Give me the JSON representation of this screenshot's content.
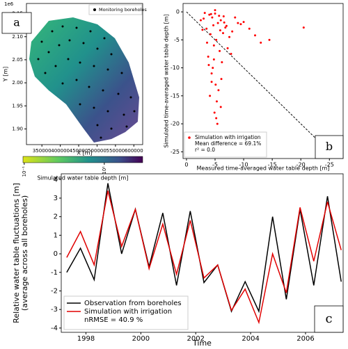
{
  "chart_data": [
    {
      "type": "map",
      "xlabel": "X [m]",
      "ylabel": "Y [m]",
      "offset_label": "1e6",
      "legend": "Monitoring boreholes",
      "panel_label": "a",
      "xlim": [
        308000,
        624000
      ],
      "ylim": [
        1.866,
        2.172
      ],
      "xticks": [
        350000,
        400000,
        450000,
        500000,
        550000,
        600000
      ],
      "yticks": [
        {
          "value": 1.9,
          "label": "1.90"
        },
        {
          "value": 1.95,
          "label": "1.95"
        },
        {
          "value": 2,
          "label": "2.00"
        },
        {
          "value": 2.05,
          "label": "2.05"
        },
        {
          "value": 2.1,
          "label": "2.10"
        },
        {
          "value": 2.15,
          "label": "2.15"
        }
      ],
      "colorbar": {
        "label": "Simulated water table depth [m]",
        "log": true,
        "lim": [
          0.093,
          91
        ],
        "ticks": [
          {
            "value": 0.1,
            "label": "10⁻¹"
          },
          {
            "value": 10,
            "label": "10¹"
          }
        ]
      }
    },
    {
      "type": "scatter",
      "xlabel": "Measured time-averaged water table depth [m]",
      "ylabel": "Simulated time-averaged water table depth [m]",
      "panel_label": "b",
      "xlim": [
        0.6,
        -27.4
      ],
      "ylim": [
        -26.2,
        1.5
      ],
      "xticks": [
        0,
        -5,
        -10,
        -15,
        -20,
        -25
      ],
      "yticks": [
        0,
        -5,
        -10,
        -15,
        -20,
        -25
      ],
      "legend_corner": "lower left",
      "legend_notes": [
        "Mean difference = 69.1%",
        "r² = 0.0"
      ],
      "series": [
        {
          "name": "Simulation with irrigation",
          "color": "#ff0000",
          "x": [
            -4,
            -4.5,
            -5,
            -5.5,
            -6,
            -3.5,
            -6.5,
            -7,
            -4.2,
            -5.2,
            -3,
            -8,
            -9,
            -4.8,
            -5.8,
            -6.2,
            -7.5,
            -3.8,
            -4.4,
            -5.1,
            -6.8,
            -10,
            -11,
            -12,
            -13,
            -14.5,
            -20.5,
            -3.2,
            -2.5,
            -4.1,
            -5.3,
            -6.1,
            -7.2,
            -8.5,
            -9.5,
            -4.6,
            -5.6,
            -3.6,
            -4.9,
            -5.4,
            -6.4,
            -7.8,
            -2.8,
            -4.3,
            -5,
            -5.7,
            -6.6,
            -4.7,
            -5.9,
            -3.9,
            -5.5,
            -4.4,
            -6,
            -5.2,
            -4.8
          ],
          "y": [
            -0.5,
            -1,
            -0.3,
            -2,
            -1.5,
            -3,
            -0.8,
            -2.5,
            -4,
            -5,
            -1.2,
            -3.5,
            -2,
            -6,
            -7,
            -9,
            -4.5,
            -8,
            -11,
            -13,
            -2.8,
            -1.8,
            -3,
            -4.2,
            -5.5,
            -5,
            -2.8,
            -0.2,
            -1.5,
            -15,
            -16,
            -12,
            -6.5,
            -1,
            -2.2,
            -10,
            -14,
            -5.5,
            -18,
            -20,
            -3.8,
            -7.5,
            -3.2,
            -0.4,
            0.3,
            -0.7,
            -1.9,
            -2.4,
            -3.3,
            -9.5,
            -22,
            -12.5,
            -17,
            -19,
            -8.5
          ]
        }
      ]
    },
    {
      "type": "line",
      "xlabel": "Time",
      "ylabel": [
        "Relative water table fluctuations [m]",
        "(average across all boreholes)"
      ],
      "panel_label": "c",
      "xlim": [
        1997.1,
        2007.37
      ],
      "ylim": [
        -4.23,
        4.31
      ],
      "xticks": [
        1998,
        2000,
        2002,
        2004,
        2006
      ],
      "yticks": [
        -4,
        -3,
        -2,
        -1,
        0,
        1,
        2,
        3,
        4
      ],
      "legend_corner": "lower left",
      "legend_notes": [
        "nRMSE = 40.9 %"
      ],
      "x": [
        1997.3,
        1997.8,
        1998.3,
        1998.8,
        1999.3,
        1999.8,
        2000.3,
        2000.8,
        2001.3,
        2001.8,
        2002.3,
        2002.8,
        2003.3,
        2003.8,
        2004.3,
        2004.8,
        2005.3,
        2005.8,
        2006.3,
        2006.8,
        2007.3
      ],
      "series": [
        {
          "name": "Observation from boreholes",
          "color": "#000000",
          "values": [
            -1,
            0.3,
            -1.4,
            3.8,
            0,
            2.4,
            -0.7,
            2.2,
            -1.7,
            2.3,
            -1.55,
            -0.6,
            -3.1,
            -1.5,
            -3.1,
            2,
            -2.45,
            2.4,
            -1.7,
            3.1,
            -1.5
          ]
        },
        {
          "name": "Simulation with irrigation",
          "color": "#e00000",
          "values": [
            -0.2,
            1.2,
            -0.6,
            3.4,
            0.4,
            2.4,
            -0.8,
            1.6,
            -1.1,
            1.8,
            -1.3,
            -0.6,
            -3.05,
            -1.9,
            -3.7,
            0,
            -2.1,
            2.5,
            -0.4,
            2.8,
            0.2
          ]
        }
      ]
    }
  ]
}
